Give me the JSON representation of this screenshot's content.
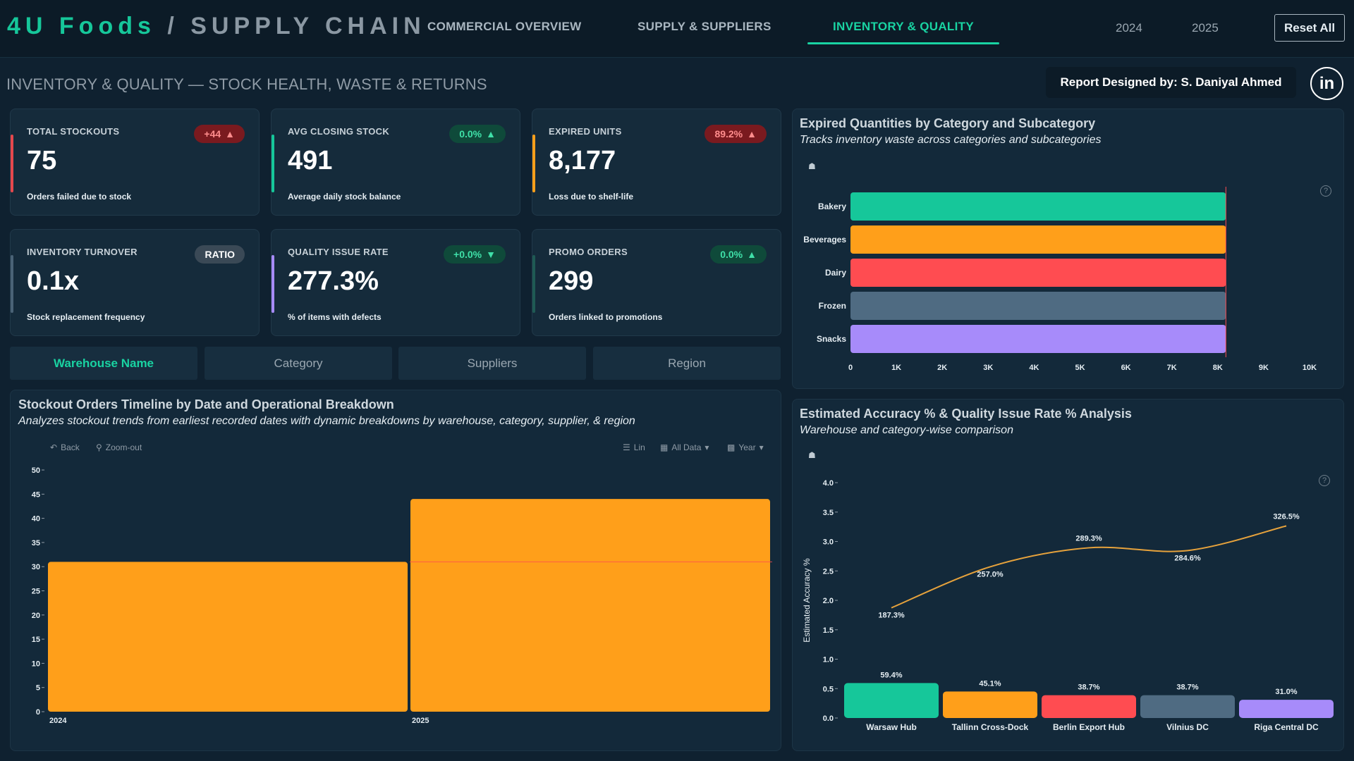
{
  "header": {
    "brand_main": "4U Foods",
    "brand_sep": " / ",
    "brand_sub": "SUPPLY CHAIN",
    "tabs": [
      {
        "label": "COMMERCIAL OVERVIEW",
        "active": false
      },
      {
        "label": "SUPPLY & SUPPLIERS",
        "active": false
      },
      {
        "label": "INVENTORY & QUALITY",
        "active": true
      }
    ],
    "years": [
      "2024",
      "2025"
    ],
    "reset_label": "Reset All"
  },
  "page": {
    "title": "INVENTORY & QUALITY — STOCK HEALTH, WASTE & RETURNS",
    "designer": "Report Designed by: S. Daniyal Ahmed",
    "linkedin": "in"
  },
  "kpis": [
    {
      "title": "TOTAL STOCKOUTS",
      "value": "75",
      "sub": "Orders failed due to stock",
      "badge": "+44",
      "badge_arrow": "▲",
      "accent": "#e5484d"
    },
    {
      "title": "AVG CLOSING STOCK",
      "value": "491",
      "sub": "Average daily stock balance",
      "badge": "0.0%",
      "badge_arrow": "▲",
      "accent": "#16c79a"
    },
    {
      "title": "EXPIRED UNITS",
      "value": "8,177",
      "sub": "Loss due to shelf-life",
      "badge": "89.2%",
      "badge_arrow": "▲",
      "accent": "#ff9f1a"
    },
    {
      "title": "INVENTORY TURNOVER",
      "value": "0.1x",
      "sub": "Stock replacement frequency",
      "badge": "RATIO",
      "badge_arrow": "",
      "accent": "#4a6377"
    },
    {
      "title": "QUALITY ISSUE RATE",
      "value": "277.3%",
      "sub": "% of items with defects",
      "badge": "+0.0%",
      "badge_arrow": "▼",
      "accent": "#a78bfa"
    },
    {
      "title": "PROMO ORDERS",
      "value": "299",
      "sub": "Orders linked to promotions",
      "badge": "0.0%",
      "badge_arrow": "▲",
      "accent": "#1f5a54"
    }
  ],
  "filters": [
    "Warehouse Name",
    "Category",
    "Suppliers",
    "Region"
  ],
  "panels": {
    "expired": {
      "title": "Expired Quantities by Category and Subcategory",
      "subtitle": "Tracks inventory waste across categories and subcategories"
    },
    "stockout": {
      "title": "Stockout Orders Timeline by Date and Operational Breakdown",
      "subtitle": "Analyzes stockout trends from earliest recorded dates with dynamic breakdowns by warehouse, category, supplier, & region",
      "toolbar": {
        "back": "Back",
        "zoom": "Zoom-out",
        "lin": "Lin",
        "all_data": "All Data",
        "year": "Year"
      }
    },
    "accuracy": {
      "title": "Estimated Accuracy % & Quality Issue Rate % Analysis",
      "subtitle": "Warehouse and category-wise comparison"
    }
  },
  "chart_data": [
    {
      "type": "bar",
      "orientation": "horizontal",
      "categories": [
        "Bakery",
        "Beverages",
        "Dairy",
        "Frozen",
        "Snacks"
      ],
      "values": [
        8177,
        8177,
        8177,
        8177,
        8177
      ],
      "colors": [
        "#16c79a",
        "#ff9f1a",
        "#ff4c51",
        "#4f6b82",
        "#a78bfa"
      ],
      "xlim": [
        0,
        10000
      ],
      "xticks": [
        "0",
        "1K",
        "2K",
        "3K",
        "4K",
        "5K",
        "6K",
        "7K",
        "8K",
        "9K",
        "10K"
      ]
    },
    {
      "type": "bar",
      "categories": [
        "2024",
        "2025"
      ],
      "values": [
        31,
        44
      ],
      "color": "#ff9f1a",
      "ylim": [
        0,
        50
      ],
      "yticks": [
        "0",
        "5",
        "10",
        "15",
        "20",
        "25",
        "30",
        "35",
        "40",
        "45",
        "50"
      ]
    },
    {
      "type": "bar+line",
      "categories": [
        "Warsaw Hub",
        "Tallinn Cross-Dock",
        "Berlin Export Hub",
        "Vilnius DC",
        "Riga Central DC"
      ],
      "bar_values": [
        0.594,
        0.451,
        0.387,
        0.387,
        0.31
      ],
      "bar_labels": [
        "59.4%",
        "45.1%",
        "38.7%",
        "38.7%",
        "31.0%"
      ],
      "bar_colors": [
        "#16c79a",
        "#ff9f1a",
        "#ff4c51",
        "#4f6b82",
        "#a78bfa"
      ],
      "line_values": [
        1.873,
        2.57,
        2.893,
        2.846,
        3.265
      ],
      "line_labels": [
        "187.3%",
        "257.0%",
        "289.3%",
        "284.6%",
        "326.5%"
      ],
      "line_color": "#e6a23c",
      "ylabel": "Estimated Accuracy %",
      "ylim": [
        0,
        4.0
      ],
      "yticks": [
        "0.0",
        "0.5",
        "1.0",
        "1.5",
        "2.0",
        "2.5",
        "3.0",
        "3.5",
        "4.0"
      ]
    }
  ]
}
